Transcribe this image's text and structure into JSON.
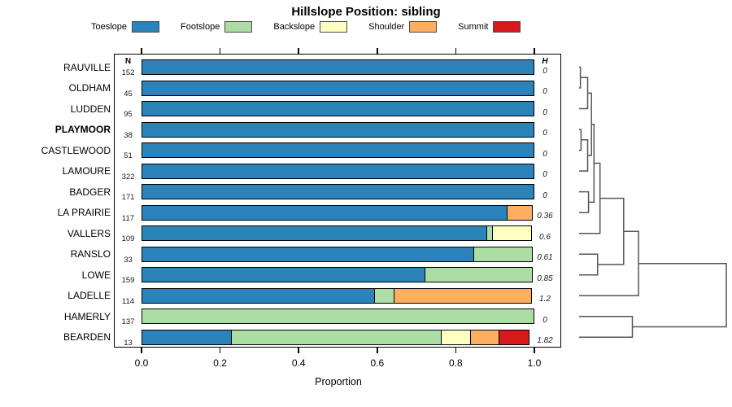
{
  "title": "Hillslope Position: sibling",
  "legend": [
    {
      "label": "Toeslope",
      "color": "#2B83BA"
    },
    {
      "label": "Footslope",
      "color": "#ABDDA4"
    },
    {
      "label": "Backslope",
      "color": "#FFFFBF"
    },
    {
      "label": "Shoulder",
      "color": "#FDAE61"
    },
    {
      "label": "Summit",
      "color": "#D7191C"
    }
  ],
  "columns": {
    "n_header": "N",
    "h_header": "H"
  },
  "x_axis": {
    "label": "Proportion",
    "ticks": [
      "0.0",
      "0.2",
      "0.4",
      "0.6",
      "0.8",
      "1.0"
    ],
    "min": 0,
    "max": 1
  },
  "chart_data": {
    "type": "bar",
    "orientation": "horizontal-stacked",
    "categories": [
      "Toeslope",
      "Footslope",
      "Backslope",
      "Shoulder",
      "Summit"
    ],
    "category_colors": [
      "#2B83BA",
      "#ABDDA4",
      "#FFFFBF",
      "#FDAE61",
      "#D7191C"
    ],
    "xlabel": "Proportion",
    "xlim": [
      0,
      1
    ],
    "rows": [
      {
        "name": "RAUVILLE",
        "n": 152,
        "h": "0",
        "bold": false,
        "values": [
          1,
          0,
          0,
          0,
          0
        ]
      },
      {
        "name": "OLDHAM",
        "n": 45,
        "h": "0",
        "bold": false,
        "values": [
          1,
          0,
          0,
          0,
          0
        ]
      },
      {
        "name": "LUDDEN",
        "n": 95,
        "h": "0",
        "bold": false,
        "values": [
          1,
          0,
          0,
          0,
          0
        ]
      },
      {
        "name": "PLAYMOOR",
        "n": 38,
        "h": "0",
        "bold": true,
        "values": [
          1,
          0,
          0,
          0,
          0
        ]
      },
      {
        "name": "CASTLEWOOD",
        "n": 51,
        "h": "0",
        "bold": false,
        "values": [
          1,
          0,
          0,
          0,
          0
        ]
      },
      {
        "name": "LAMOURE",
        "n": 322,
        "h": "0",
        "bold": false,
        "values": [
          1,
          0,
          0,
          0,
          0
        ]
      },
      {
        "name": "BADGER",
        "n": 171,
        "h": "0",
        "bold": false,
        "values": [
          1,
          0,
          0,
          0,
          0
        ]
      },
      {
        "name": "LA PRAIRIE",
        "n": 117,
        "h": "0.36",
        "bold": false,
        "values": [
          0.932,
          0,
          0,
          0.068,
          0
        ]
      },
      {
        "name": "VALLERS",
        "n": 109,
        "h": "0.6",
        "bold": false,
        "values": [
          0.881,
          0.018,
          0.101,
          0,
          0
        ]
      },
      {
        "name": "RANSLO",
        "n": 33,
        "h": "0.61",
        "bold": false,
        "values": [
          0.848,
          0.152,
          0,
          0,
          0
        ]
      },
      {
        "name": "LOWE",
        "n": 159,
        "h": "0.85",
        "bold": false,
        "values": [
          0.723,
          0.277,
          0,
          0,
          0
        ]
      },
      {
        "name": "LADELLE",
        "n": 114,
        "h": "1.2",
        "bold": false,
        "values": [
          0.596,
          0.053,
          0,
          0.351,
          0
        ]
      },
      {
        "name": "HAMERLY",
        "n": 137,
        "h": "0",
        "bold": false,
        "values": [
          0,
          1,
          0,
          0,
          0
        ]
      },
      {
        "name": "BEARDEN",
        "n": 13,
        "h": "1.82",
        "bold": false,
        "values": [
          0.231,
          0.538,
          0.077,
          0.077,
          0.077
        ]
      }
    ]
  },
  "dendrogram": {
    "merges": [
      {
        "id": "M0",
        "a": "L0",
        "b": "L1",
        "h": 0.009
      },
      {
        "id": "M1",
        "a": "L3",
        "b": "L4",
        "h": 0.013
      },
      {
        "id": "M2",
        "a": "M0",
        "b": "L2",
        "h": 0.058
      },
      {
        "id": "M3",
        "a": "M1",
        "b": "L5",
        "h": 0.058
      },
      {
        "id": "M4",
        "a": "L6",
        "b": "L7",
        "h": 0.064
      },
      {
        "id": "M5",
        "a": "M2",
        "b": "M3",
        "h": 0.084
      },
      {
        "id": "M6",
        "a": "M5",
        "b": "M4",
        "h": 0.101
      },
      {
        "id": "M7",
        "a": "L9",
        "b": "L10",
        "h": 0.126
      },
      {
        "id": "M8",
        "a": "M6",
        "b": "L8",
        "h": 0.142
      },
      {
        "id": "M9",
        "a": "M8",
        "b": "M7",
        "h": 0.303
      },
      {
        "id": "M10",
        "a": "L12",
        "b": "L13",
        "h": 0.362
      },
      {
        "id": "M11",
        "a": "M9",
        "b": "L11",
        "h": 0.404
      },
      {
        "id": "M12",
        "a": "M11",
        "b": "M10",
        "h": 1.0
      }
    ],
    "line_color": "#555555"
  }
}
